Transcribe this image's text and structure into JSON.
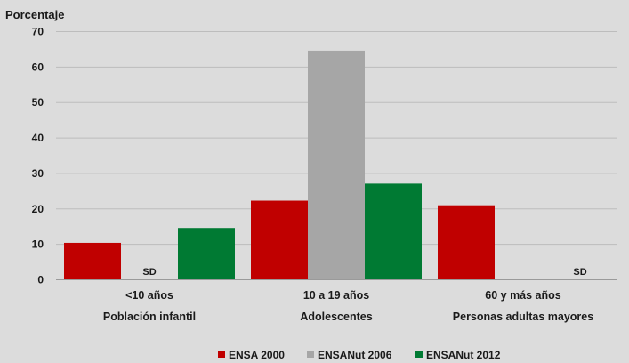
{
  "chart_data": {
    "type": "bar",
    "ylabel": "Porcentaje",
    "ylim": [
      0,
      70
    ],
    "yticks": [
      0,
      10,
      20,
      30,
      40,
      50,
      60,
      70
    ],
    "grid": true,
    "legend_position": "bottom",
    "categories": [
      {
        "label": "<10 años",
        "sublabel": "Población infantil"
      },
      {
        "label": "10 a 19 años",
        "sublabel": "Adolescentes"
      },
      {
        "label": "60 y más años",
        "sublabel": "Personas adultas mayores"
      }
    ],
    "series": [
      {
        "name": "ENSA 2000",
        "color": "#c00000",
        "values": [
          10.3,
          22.2,
          20.9
        ]
      },
      {
        "name": "ENSANut 2006",
        "color": "#a6a6a6",
        "values": [
          null,
          64.5,
          null
        ]
      },
      {
        "name": "ENSANut 2012",
        "color": "#007a33",
        "values": [
          14.5,
          27.0,
          null
        ]
      }
    ],
    "missing_label": "SD",
    "missing_labels_shown": [
      {
        "series": 1,
        "category": 0
      },
      {
        "series": 2,
        "category": 2
      }
    ]
  }
}
